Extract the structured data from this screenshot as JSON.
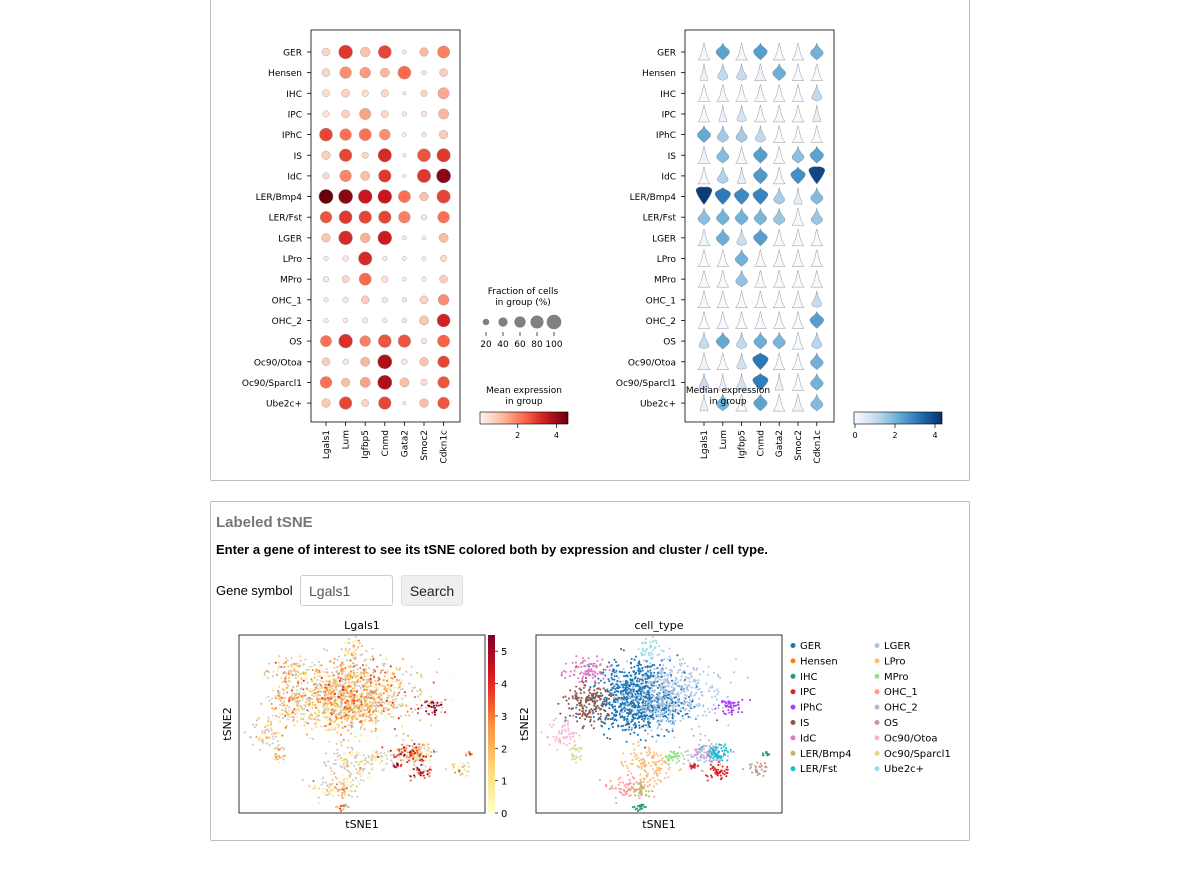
{
  "dotplot": {
    "cell_types": [
      "GER",
      "Hensen",
      "IHC",
      "IPC",
      "IPhC",
      "IS",
      "IdC",
      "LER/Bmp4",
      "LER/Fst",
      "LGER",
      "LPro",
      "MPro",
      "OHC_1",
      "OHC_2",
      "OS",
      "Oc90/Otoa",
      "Oc90/Sparcl1",
      "Ube2c+"
    ],
    "genes": [
      "Lgals1",
      "Lum",
      "Igfbp5",
      "Cnmd",
      "Gata2",
      "Smoc2",
      "Cdkn1c"
    ],
    "fraction": [
      [
        30,
        90,
        45,
        80,
        8,
        35,
        70
      ],
      [
        30,
        65,
        55,
        40,
        80,
        10,
        30
      ],
      [
        25,
        30,
        20,
        25,
        5,
        20,
        60
      ],
      [
        20,
        30,
        60,
        25,
        10,
        15,
        50
      ],
      [
        80,
        65,
        70,
        55,
        8,
        10,
        35
      ],
      [
        35,
        75,
        20,
        85,
        5,
        80,
        85
      ],
      [
        20,
        65,
        40,
        75,
        5,
        85,
        95
      ],
      [
        95,
        95,
        90,
        90,
        70,
        35,
        85
      ],
      [
        65,
        80,
        75,
        75,
        65,
        15,
        65
      ],
      [
        35,
        90,
        45,
        90,
        8,
        8,
        40
      ],
      [
        10,
        15,
        85,
        10,
        8,
        8,
        20
      ],
      [
        15,
        25,
        70,
        20,
        8,
        10,
        30
      ],
      [
        10,
        15,
        30,
        15,
        10,
        30,
        55
      ],
      [
        10,
        10,
        15,
        10,
        10,
        40,
        80
      ],
      [
        60,
        90,
        55,
        80,
        75,
        15,
        70
      ],
      [
        30,
        15,
        40,
        95,
        15,
        35,
        65
      ],
      [
        65,
        35,
        50,
        95,
        40,
        20,
        65
      ],
      [
        35,
        75,
        25,
        75,
        5,
        35,
        65
      ]
    ],
    "mean": [
      [
        0.6,
        3.0,
        1.0,
        2.8,
        0.2,
        1.2,
        2.0
      ],
      [
        0.6,
        1.8,
        1.6,
        1.2,
        2.3,
        0.3,
        0.8
      ],
      [
        0.5,
        0.7,
        0.5,
        0.6,
        0.1,
        0.6,
        1.4
      ],
      [
        0.4,
        0.7,
        1.5,
        0.6,
        0.2,
        0.3,
        1.2
      ],
      [
        2.8,
        2.2,
        2.2,
        1.8,
        0.2,
        0.3,
        0.8
      ],
      [
        0.8,
        2.8,
        0.6,
        3.2,
        0.1,
        2.6,
        3.0
      ],
      [
        0.5,
        1.9,
        1.1,
        3.0,
        0.1,
        3.0,
        4.2
      ],
      [
        4.6,
        4.2,
        3.5,
        3.5,
        2.2,
        1.1,
        2.8
      ],
      [
        2.6,
        3.0,
        2.8,
        2.8,
        2.0,
        0.3,
        2.2
      ],
      [
        0.9,
        3.2,
        1.3,
        3.4,
        0.2,
        0.2,
        1.1
      ],
      [
        0.2,
        0.3,
        3.2,
        0.2,
        0.2,
        0.2,
        0.5
      ],
      [
        0.3,
        0.6,
        2.3,
        0.4,
        0.2,
        0.2,
        0.8
      ],
      [
        0.2,
        0.3,
        0.8,
        0.3,
        0.3,
        0.7,
        1.8
      ],
      [
        0.2,
        0.2,
        0.3,
        0.2,
        0.3,
        0.9,
        3.3
      ],
      [
        2.2,
        3.1,
        2.0,
        2.6,
        2.6,
        0.4,
        2.4
      ],
      [
        0.8,
        0.3,
        1.2,
        3.8,
        0.3,
        1.0,
        2.8
      ],
      [
        2.2,
        1.1,
        1.5,
        3.8,
        1.1,
        0.5,
        2.6
      ],
      [
        0.9,
        2.8,
        0.7,
        2.8,
        0.1,
        1.1,
        2.6
      ]
    ],
    "size_legend": {
      "title_line1": "Fraction of cells",
      "title_line2": "in group (%)",
      "ticks": [
        "20",
        "40",
        "60",
        "80",
        "100"
      ]
    },
    "color_legend": {
      "title_line1": "Mean expression",
      "title_line2": "in group",
      "ticks": [
        "2",
        "4"
      ]
    }
  },
  "violin": {
    "median": [
      [
        0.1,
        2.5,
        0.1,
        2.6,
        0.0,
        0.0,
        2.2
      ],
      [
        0.3,
        1.2,
        1.1,
        0.2,
        2.3,
        0.0,
        0.0
      ],
      [
        0.0,
        0.1,
        0.0,
        0.0,
        0.0,
        0.0,
        1.2
      ],
      [
        0.0,
        0.3,
        0.8,
        0.0,
        0.0,
        0.0,
        0.4
      ],
      [
        2.4,
        1.6,
        1.6,
        1.2,
        0.0,
        0.0,
        0.0
      ],
      [
        0.2,
        2.0,
        0.1,
        2.6,
        0.0,
        1.9,
        2.5
      ],
      [
        0.0,
        1.4,
        0.4,
        2.7,
        0.0,
        2.9,
        4.2
      ],
      [
        4.4,
        3.3,
        3.0,
        3.1,
        1.5,
        0.4,
        2.0
      ],
      [
        1.9,
        2.2,
        2.2,
        2.1,
        1.7,
        0.0,
        1.7
      ],
      [
        0.2,
        2.3,
        1.0,
        2.6,
        0.0,
        0.0,
        0.0
      ],
      [
        0.0,
        0.0,
        2.2,
        0.0,
        0.0,
        0.0,
        0.0
      ],
      [
        0.0,
        0.0,
        1.8,
        0.0,
        0.0,
        0.0,
        0.0
      ],
      [
        0.0,
        0.0,
        0.0,
        0.0,
        0.0,
        0.0,
        1.1
      ],
      [
        0.0,
        0.0,
        0.0,
        0.0,
        0.0,
        0.0,
        2.6
      ],
      [
        1.1,
        2.4,
        1.2,
        2.3,
        2.1,
        0.0,
        1.3
      ],
      [
        0.2,
        0.0,
        0.9,
        3.3,
        0.0,
        0.0,
        2.2
      ],
      [
        1.1,
        0.3,
        0.8,
        3.2,
        0.3,
        0.0,
        2.2
      ],
      [
        0.3,
        2.2,
        0.0,
        2.5,
        0.0,
        0.2,
        2.0
      ]
    ],
    "color_legend": {
      "title_line1": "Median expression",
      "title_line2": "in group",
      "ticks": [
        "0",
        "2",
        "4"
      ]
    }
  },
  "tsne_section": {
    "title": "Labeled tSNE",
    "description": "Enter a gene of interest to see its tSNE colored both by expression and cluster / cell type.",
    "gene_label": "Gene symbol",
    "gene_input_value": "Lgals1",
    "search_label": "Search"
  },
  "tsne_plots": {
    "expr_title": "Lgals1",
    "cluster_title": "cell_type",
    "xlabel": "tSNE1",
    "ylabel": "tSNE2",
    "colorbar_ticks": [
      "0",
      "1",
      "2",
      "3",
      "4",
      "5"
    ],
    "colorbar_max": 5.5,
    "legend": [
      {
        "name": "GER",
        "color": "#1f77b4"
      },
      {
        "name": "Hensen",
        "color": "#ff7f0e"
      },
      {
        "name": "IHC",
        "color": "#279e68"
      },
      {
        "name": "IPC",
        "color": "#d62728"
      },
      {
        "name": "IPhC",
        "color": "#aa40fc"
      },
      {
        "name": "IS",
        "color": "#8c564b"
      },
      {
        "name": "IdC",
        "color": "#e377c2"
      },
      {
        "name": "LER/Bmp4",
        "color": "#b5bd61"
      },
      {
        "name": "LER/Fst",
        "color": "#17becf"
      },
      {
        "name": "LGER",
        "color": "#aec7e8"
      },
      {
        "name": "LPro",
        "color": "#ffbb78"
      },
      {
        "name": "MPro",
        "color": "#98df8a"
      },
      {
        "name": "OHC_1",
        "color": "#ff9896"
      },
      {
        "name": "OHC_2",
        "color": "#c5b0d5"
      },
      {
        "name": "OS",
        "color": "#c49c94"
      },
      {
        "name": "Oc90/Otoa",
        "color": "#f7b6d2"
      },
      {
        "name": "Oc90/Sparcl1",
        "color": "#dbdb8d"
      },
      {
        "name": "Ube2c+",
        "color": "#9edae5"
      }
    ]
  }
}
